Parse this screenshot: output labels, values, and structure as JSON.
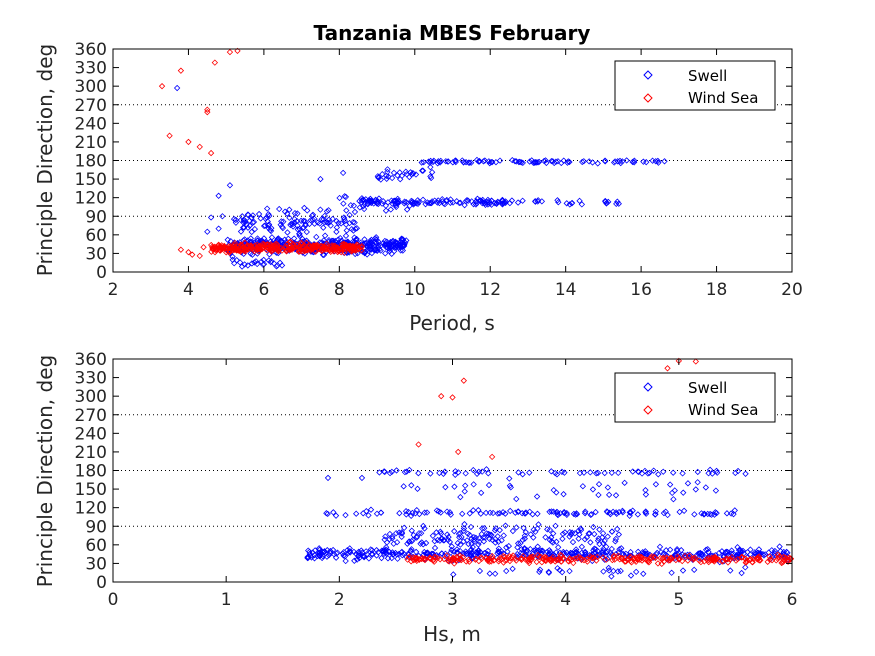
{
  "title": "Tanzania MBES February",
  "colors": {
    "swell": "#0000ff",
    "windsea": "#ff0000"
  },
  "chart_data": [
    {
      "type": "scatter",
      "xlabel": "Period, s",
      "ylabel": "Principle Direction, deg",
      "xlim": [
        2,
        20
      ],
      "ylim": [
        0,
        360
      ],
      "xticks": [
        2,
        4,
        6,
        8,
        10,
        12,
        14,
        16,
        18,
        20
      ],
      "yticks": [
        0,
        30,
        60,
        90,
        120,
        150,
        180,
        210,
        240,
        270,
        300,
        330,
        360
      ],
      "reference_lines": [
        90,
        180,
        270
      ],
      "legend": [
        "Swell",
        "Wind Sea"
      ],
      "legend_position": "top-right",
      "series": [
        {
          "name": "Swell",
          "marker": "diamond",
          "color": "#0000ff",
          "clusters": [
            {
              "x": [
                5.0,
                9.8
              ],
              "y": [
                25,
                60
              ],
              "n": 420
            },
            {
              "x": [
                5.2,
                8.5
              ],
              "y": [
                50,
                110
              ],
              "n": 120
            },
            {
              "x": [
                5.0,
                6.5
              ],
              "y": [
                0,
                30
              ],
              "n": 25
            },
            {
              "x": [
                8.5,
                12.5
              ],
              "y": [
                105,
                120
              ],
              "n": 110
            },
            {
              "x": [
                12.5,
                15.5
              ],
              "y": [
                105,
                118
              ],
              "n": 25
            },
            {
              "x": [
                9.0,
                10.5
              ],
              "y": [
                140,
                175
              ],
              "n": 30
            },
            {
              "x": [
                10.0,
                16.8
              ],
              "y": [
                174,
                182
              ],
              "n": 90
            },
            {
              "x": [
                8.0,
                10.0
              ],
              "y": [
                90,
                130
              ],
              "n": 30
            }
          ],
          "points": [
            {
              "x": 3.7,
              "y": 297
            },
            {
              "x": 4.8,
              "y": 123
            },
            {
              "x": 4.6,
              "y": 88
            },
            {
              "x": 4.9,
              "y": 90
            },
            {
              "x": 4.8,
              "y": 70
            },
            {
              "x": 4.5,
              "y": 65
            },
            {
              "x": 5.1,
              "y": 140
            },
            {
              "x": 7.5,
              "y": 150
            },
            {
              "x": 8.1,
              "y": 160
            }
          ]
        },
        {
          "name": "Wind Sea",
          "marker": "diamond",
          "color": "#ff0000",
          "clusters": [
            {
              "x": [
                4.6,
                8.6
              ],
              "y": [
                28,
                50
              ],
              "n": 320
            }
          ],
          "points": [
            {
              "x": 3.3,
              "y": 300
            },
            {
              "x": 3.8,
              "y": 325
            },
            {
              "x": 3.5,
              "y": 220
            },
            {
              "x": 4.0,
              "y": 210
            },
            {
              "x": 4.3,
              "y": 202
            },
            {
              "x": 4.5,
              "y": 262
            },
            {
              "x": 4.5,
              "y": 258
            },
            {
              "x": 4.6,
              "y": 192
            },
            {
              "x": 4.7,
              "y": 338
            },
            {
              "x": 5.1,
              "y": 355
            },
            {
              "x": 5.3,
              "y": 357
            },
            {
              "x": 3.8,
              "y": 36
            },
            {
              "x": 4.1,
              "y": 28
            },
            {
              "x": 4.3,
              "y": 26
            },
            {
              "x": 4.4,
              "y": 40
            },
            {
              "x": 4.0,
              "y": 32
            }
          ]
        }
      ]
    },
    {
      "type": "scatter",
      "xlabel": "Hs, m",
      "ylabel": "Principle Direction, deg",
      "xlim": [
        0,
        6
      ],
      "ylim": [
        0,
        360
      ],
      "xticks": [
        0,
        1,
        2,
        3,
        4,
        5,
        6
      ],
      "yticks": [
        0,
        30,
        60,
        90,
        120,
        150,
        180,
        210,
        240,
        270,
        300,
        330,
        360
      ],
      "reference_lines": [
        90,
        180,
        270
      ],
      "legend": [
        "Swell",
        "Wind Sea"
      ],
      "legend_position": "top-right",
      "series": [
        {
          "name": "Swell",
          "marker": "diamond",
          "color": "#0000ff",
          "clusters": [
            {
              "x": [
                1.7,
                6.0
              ],
              "y": [
                30,
                60
              ],
              "n": 450
            },
            {
              "x": [
                2.4,
                4.5
              ],
              "y": [
                50,
                100
              ],
              "n": 160
            },
            {
              "x": [
                2.2,
                5.5
              ],
              "y": [
                105,
                118
              ],
              "n": 110
            },
            {
              "x": [
                2.4,
                5.6
              ],
              "y": [
                125,
                170
              ],
              "n": 40
            },
            {
              "x": [
                2.3,
                5.6
              ],
              "y": [
                172,
                182
              ],
              "n": 60
            },
            {
              "x": [
                1.8,
                2.2
              ],
              "y": [
                105,
                115
              ],
              "n": 6
            },
            {
              "x": [
                3.0,
                5.8
              ],
              "y": [
                0,
                30
              ],
              "n": 30
            }
          ],
          "points": [
            {
              "x": 2.2,
              "y": 168
            },
            {
              "x": 1.9,
              "y": 168
            },
            {
              "x": 3.3,
              "y": 182
            }
          ]
        },
        {
          "name": "Wind Sea",
          "marker": "diamond",
          "color": "#ff0000",
          "clusters": [
            {
              "x": [
                2.6,
                6.0
              ],
              "y": [
                28,
                46
              ],
              "n": 300
            }
          ],
          "points": [
            {
              "x": 2.9,
              "y": 300
            },
            {
              "x": 3.0,
              "y": 298
            },
            {
              "x": 3.1,
              "y": 325
            },
            {
              "x": 2.7,
              "y": 222
            },
            {
              "x": 3.05,
              "y": 210
            },
            {
              "x": 3.35,
              "y": 202
            },
            {
              "x": 4.9,
              "y": 345
            },
            {
              "x": 5.0,
              "y": 357
            },
            {
              "x": 5.15,
              "y": 356
            }
          ]
        }
      ]
    }
  ]
}
